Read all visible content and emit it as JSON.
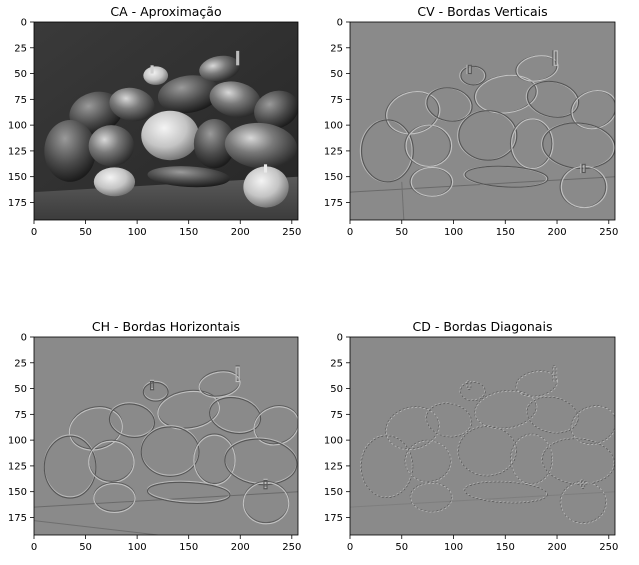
{
  "figure": {
    "panels": [
      {
        "title": "CA - Aproximação",
        "kind": "approximation",
        "x_ticks": [
          0,
          50,
          100,
          150,
          200,
          250
        ],
        "y_ticks": [
          0,
          25,
          50,
          75,
          100,
          125,
          150,
          175
        ],
        "x_range": [
          0,
          256
        ],
        "y_range": [
          0,
          192
        ]
      },
      {
        "title": "CV - Bordas Verticais",
        "kind": "vertical-edges",
        "x_ticks": [
          0,
          50,
          100,
          150,
          200,
          250
        ],
        "y_ticks": [
          0,
          25,
          50,
          75,
          100,
          125,
          150,
          175
        ],
        "x_range": [
          0,
          256
        ],
        "y_range": [
          0,
          192
        ]
      },
      {
        "title": "CH - Bordas Horizontais",
        "kind": "horizontal-edges",
        "x_ticks": [
          0,
          50,
          100,
          150,
          200,
          250
        ],
        "y_ticks": [
          0,
          25,
          50,
          75,
          100,
          125,
          150,
          175
        ],
        "x_range": [
          0,
          256
        ],
        "y_range": [
          0,
          192
        ]
      },
      {
        "title": "CD - Bordas Diagonais",
        "kind": "diagonal-edges",
        "x_ticks": [
          0,
          50,
          100,
          150,
          200,
          250
        ],
        "y_ticks": [
          0,
          25,
          50,
          75,
          100,
          125,
          150,
          175
        ],
        "x_range": [
          0,
          256
        ],
        "y_range": [
          0,
          192
        ]
      }
    ]
  }
}
